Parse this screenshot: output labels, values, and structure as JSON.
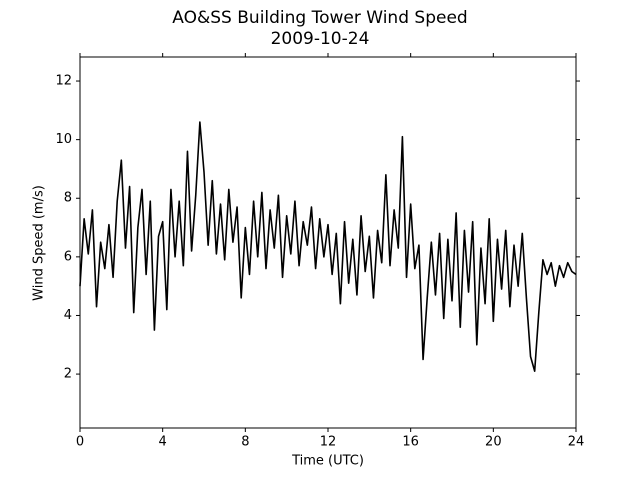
{
  "chart_data": {
    "type": "line",
    "title": "AO&SS Building Tower Wind Speed",
    "subtitle": "2009-10-24",
    "x_label": "Time (UTC)",
    "y_label": "Wind Speed (m/s)",
    "xlim": [
      0,
      24
    ],
    "xticks": [
      0,
      4,
      8,
      12,
      16,
      20,
      24
    ],
    "ylim": [
      0.16,
      12.82
    ],
    "yticks": [
      2,
      4,
      6,
      8,
      10,
      12
    ],
    "grid": false,
    "series": [
      {
        "name": "Wind Speed",
        "color": "#000000",
        "x": [
          0,
          0.2,
          0.4,
          0.6,
          0.8,
          1,
          1.2,
          1.4,
          1.6,
          1.8,
          2,
          2.2,
          2.4,
          2.6,
          2.8,
          3,
          3.2,
          3.4,
          3.6,
          3.8,
          4,
          4.2,
          4.4,
          4.6,
          4.8,
          5,
          5.2,
          5.4,
          5.6,
          5.8,
          6,
          6.2,
          6.4,
          6.6,
          6.8,
          7,
          7.2,
          7.4,
          7.6,
          7.8,
          8,
          8.2,
          8.4,
          8.6,
          8.8,
          9,
          9.2,
          9.4,
          9.6,
          9.8,
          10,
          10.2,
          10.4,
          10.6,
          10.8,
          11,
          11.2,
          11.4,
          11.6,
          11.8,
          12,
          12.2,
          12.4,
          12.6,
          12.8,
          13,
          13.2,
          13.4,
          13.6,
          13.8,
          14,
          14.2,
          14.4,
          14.6,
          14.8,
          15,
          15.2,
          15.4,
          15.6,
          15.8,
          16,
          16.2,
          16.4,
          16.6,
          16.8,
          17,
          17.2,
          17.4,
          17.6,
          17.8,
          18,
          18.2,
          18.4,
          18.6,
          18.8,
          19,
          19.2,
          19.4,
          19.6,
          19.8,
          20,
          20.2,
          20.4,
          20.6,
          20.8,
          21,
          21.2,
          21.4,
          21.6,
          21.8,
          22,
          22.2,
          22.4,
          22.6,
          22.8,
          23,
          23.2,
          23.4,
          23.6,
          23.8,
          24
        ],
        "values": [
          5.0,
          7.3,
          6.1,
          7.6,
          4.3,
          6.5,
          5.6,
          7.1,
          5.3,
          7.9,
          9.3,
          6.3,
          8.4,
          4.1,
          7.0,
          8.3,
          5.4,
          7.9,
          3.5,
          6.7,
          7.2,
          4.2,
          8.3,
          6.0,
          7.9,
          5.7,
          9.6,
          6.2,
          8.1,
          10.6,
          8.9,
          6.4,
          8.6,
          6.1,
          7.8,
          5.9,
          8.3,
          6.5,
          7.7,
          4.6,
          7.0,
          5.4,
          7.9,
          6.0,
          8.2,
          5.6,
          7.6,
          6.3,
          8.1,
          5.3,
          7.4,
          6.1,
          7.9,
          5.7,
          7.2,
          6.4,
          7.7,
          5.6,
          7.3,
          6.0,
          7.1,
          5.4,
          6.8,
          4.4,
          7.2,
          5.1,
          6.6,
          4.7,
          7.4,
          5.5,
          6.7,
          4.6,
          6.9,
          5.8,
          8.8,
          5.7,
          7.6,
          6.3,
          10.1,
          5.3,
          7.8,
          5.6,
          6.4,
          2.5,
          4.6,
          6.5,
          4.7,
          6.8,
          3.9,
          6.6,
          4.5,
          7.5,
          3.6,
          6.9,
          4.8,
          7.2,
          3.0,
          6.3,
          4.4,
          7.3,
          3.8,
          6.6,
          4.9,
          6.9,
          4.3,
          6.4,
          5.0,
          6.8,
          4.6,
          2.6,
          2.1,
          4.1,
          5.9,
          5.4,
          5.8,
          5.0,
          5.7,
          5.3,
          5.8,
          5.5,
          5.4
        ]
      }
    ]
  }
}
